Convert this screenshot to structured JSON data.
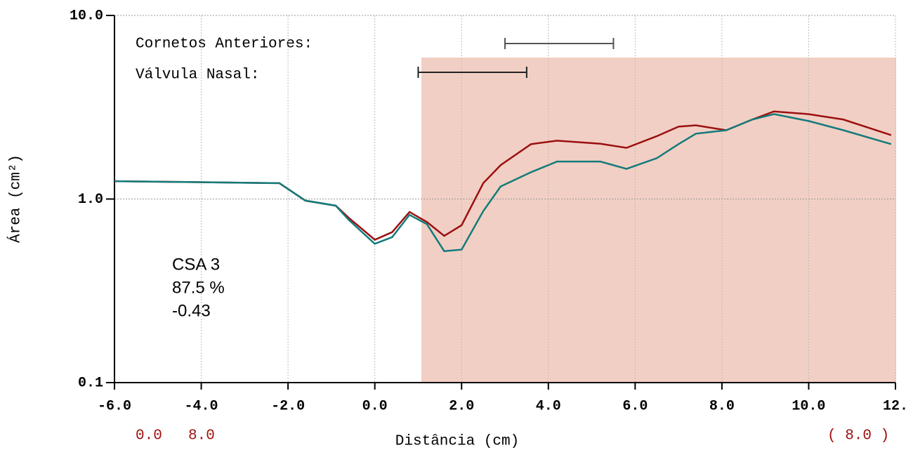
{
  "chart_data": {
    "type": "line",
    "y_label": "Área (cm²)",
    "x_label": "Distância (cm)",
    "log_y": true,
    "grid": true,
    "xlim": [
      -6,
      12
    ],
    "ylim": [
      0.1,
      10
    ],
    "xticks": [
      {
        "value": -6,
        "label": "-6.0"
      },
      {
        "value": -4,
        "label": "-4.0"
      },
      {
        "value": -2,
        "label": "-2.0"
      },
      {
        "value": 0,
        "label": "0.0"
      },
      {
        "value": 2,
        "label": "2.0"
      },
      {
        "value": 4,
        "label": "4.0"
      },
      {
        "value": 6,
        "label": "6.0"
      },
      {
        "value": 8,
        "label": "8.0"
      },
      {
        "value": 10,
        "label": "10.0"
      },
      {
        "value": 12,
        "label": "12."
      }
    ],
    "yticks": [
      {
        "value": 0.1,
        "label": "0.1"
      },
      {
        "value": 1,
        "label": "1.0"
      },
      {
        "value": 10,
        "label": "10.0"
      }
    ],
    "x": [
      -6,
      -4.6,
      -2.2,
      -1.6,
      -0.9,
      -0.6,
      0,
      0.4,
      0.8,
      1.2,
      1.6,
      2.0,
      2.5,
      2.9,
      3.6,
      4.2,
      5.2,
      5.8,
      6.5,
      7.0,
      7.4,
      8.1,
      8.7,
      9.2,
      10.0,
      10.8,
      11.9
    ],
    "series": [
      {
        "color": "#9b1010",
        "values": [
          1.25,
          1.24,
          1.22,
          0.98,
          0.92,
          0.79,
          0.6,
          0.66,
          0.85,
          0.75,
          0.63,
          0.72,
          1.22,
          1.53,
          1.99,
          2.08,
          2.0,
          1.9,
          2.2,
          2.48,
          2.52,
          2.37,
          2.71,
          3.0,
          2.9,
          2.71,
          2.23
        ]
      },
      {
        "color": "#137b7b",
        "values": [
          1.25,
          1.24,
          1.22,
          0.98,
          0.92,
          0.77,
          0.57,
          0.62,
          0.82,
          0.73,
          0.52,
          0.53,
          0.86,
          1.17,
          1.4,
          1.6,
          1.6,
          1.46,
          1.67,
          1.99,
          2.27,
          2.37,
          2.71,
          2.9,
          2.66,
          2.37,
          1.99
        ]
      }
    ],
    "ranges": [
      {
        "label": "Cornetos Anteriores:",
        "range": [
          3.0,
          5.5
        ],
        "color": "#555555"
      },
      {
        "label": "Válvula Nasal:",
        "range": [
          1.0,
          3.5
        ],
        "color": "#222222"
      }
    ],
    "csa": {
      "label": "CSA 3",
      "percent": "87.5 %",
      "value": "-0.43"
    },
    "footer_left": [
      "0.0",
      "8.0"
    ],
    "footer_right": "( 8.0 )"
  }
}
